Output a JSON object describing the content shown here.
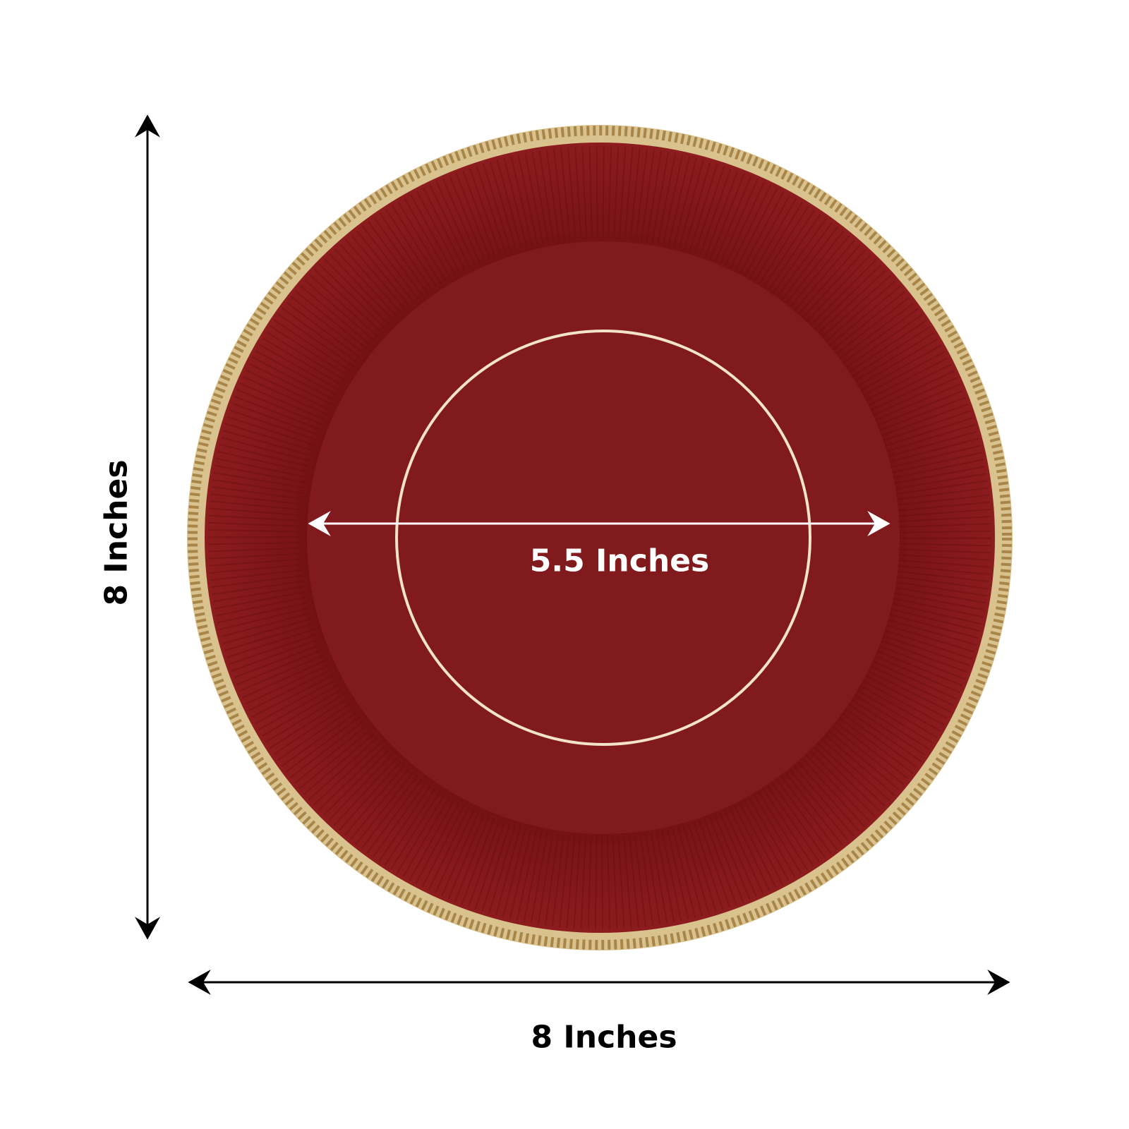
{
  "dimensions": {
    "height_label": "8 Inches",
    "width_label": "8 Inches",
    "inner_diameter_label": "5.5 Inches"
  },
  "colors": {
    "plate_red": "#8a1a1c",
    "plate_dark": "#6e0f10",
    "rim_gold": "#d8c08a",
    "inner_line": "#f3e3c8",
    "arrow_dark": "#000000",
    "arrow_light": "#ffffff"
  }
}
